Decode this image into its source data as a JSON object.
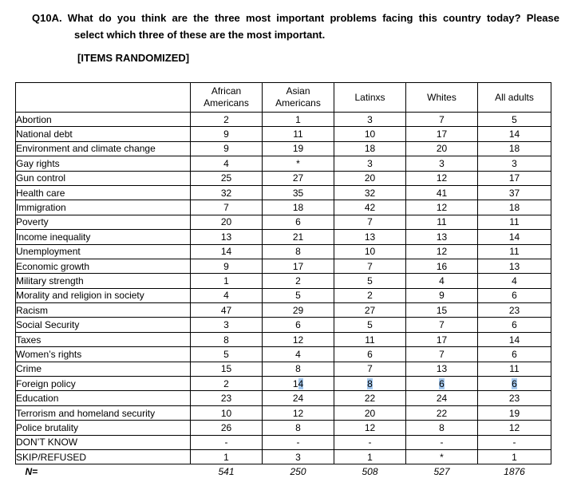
{
  "header": {
    "question_line1": "Q10A. What do you think are the three most important problems facing this country today? Please",
    "question_line2": "select which three of these are the most important.",
    "items_note": "[ITEMS RANDOMIZED]"
  },
  "table": {
    "columns": [
      "African Americans",
      "Asian Americans",
      "Latinxs",
      "Whites",
      "All adults"
    ],
    "rows": [
      {
        "label": "Abortion",
        "values": [
          "2",
          "1",
          "3",
          "7",
          "5"
        ]
      },
      {
        "label": "National debt",
        "values": [
          "9",
          "11",
          "10",
          "17",
          "14"
        ]
      },
      {
        "label": "Environment and climate change",
        "values": [
          "9",
          "19",
          "18",
          "20",
          "18"
        ]
      },
      {
        "label": "Gay rights",
        "values": [
          "4",
          "*",
          "3",
          "3",
          "3"
        ]
      },
      {
        "label": "Gun control",
        "values": [
          "25",
          "27",
          "20",
          "12",
          "17"
        ]
      },
      {
        "label": "Health care",
        "values": [
          "32",
          "35",
          "32",
          "41",
          "37"
        ]
      },
      {
        "label": "Immigration",
        "values": [
          "7",
          "18",
          "42",
          "12",
          "18"
        ]
      },
      {
        "label": "Poverty",
        "values": [
          "20",
          "6",
          "7",
          "11",
          "11"
        ]
      },
      {
        "label": "Income inequality",
        "values": [
          "13",
          "21",
          "13",
          "13",
          "14"
        ]
      },
      {
        "label": "Unemployment",
        "values": [
          "14",
          "8",
          "10",
          "12",
          "11"
        ]
      },
      {
        "label": "Economic growth",
        "values": [
          "9",
          "17",
          "7",
          "16",
          "13"
        ]
      },
      {
        "label": "Military strength",
        "values": [
          "1",
          "2",
          "5",
          "4",
          "4"
        ]
      },
      {
        "label": "Morality and religion in society",
        "values": [
          "4",
          "5",
          "2",
          "9",
          "6"
        ]
      },
      {
        "label": "Racism",
        "values": [
          "47",
          "29",
          "27",
          "15",
          "23"
        ]
      },
      {
        "label": "Social Security",
        "values": [
          "3",
          "6",
          "5",
          "7",
          "6"
        ]
      },
      {
        "label": "Taxes",
        "values": [
          "8",
          "12",
          "11",
          "17",
          "14"
        ]
      },
      {
        "label": "Women’s rights",
        "values": [
          "5",
          "4",
          "6",
          "7",
          "6"
        ]
      },
      {
        "label": "Crime",
        "values": [
          "15",
          "8",
          "7",
          "13",
          "11"
        ]
      },
      {
        "label": "Foreign policy",
        "values": [
          "2",
          "14",
          "8",
          "6",
          "6"
        ],
        "highlights": [
          null,
          "4",
          "8",
          "6",
          "6"
        ]
      },
      {
        "label": "Education",
        "values": [
          "23",
          "24",
          "22",
          "24",
          "23"
        ]
      },
      {
        "label": "Terrorism and homeland security",
        "values": [
          "10",
          "12",
          "20",
          "22",
          "19"
        ]
      },
      {
        "label": "Police brutality",
        "values": [
          "26",
          "8",
          "12",
          "8",
          "12"
        ]
      },
      {
        "label": "DON’T KNOW",
        "values": [
          "-",
          "-",
          "-",
          "-",
          "-"
        ]
      },
      {
        "label": "SKIP/REFUSED",
        "values": [
          "1",
          "3",
          "1",
          "*",
          "1"
        ]
      }
    ],
    "footer": {
      "label": "N=",
      "values": [
        "541",
        "250",
        "508",
        "527",
        "1876"
      ]
    }
  },
  "colors": {
    "text": "#000000",
    "border": "#000000",
    "selection_highlight": "#a5c9ef",
    "background": "#ffffff"
  }
}
